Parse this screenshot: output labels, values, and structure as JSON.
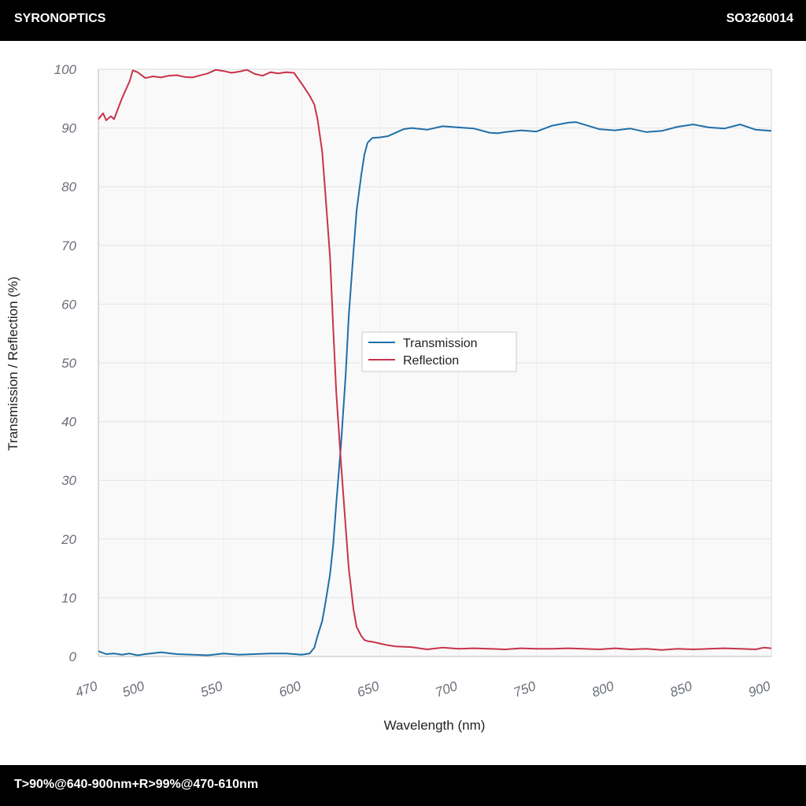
{
  "header": {
    "brand": "SYRONOPTICS",
    "code": "SO3260014"
  },
  "footer": {
    "spec": "T>90%@640-900nm+R>99%@470-610nm"
  },
  "chart_data": {
    "type": "line",
    "title": "",
    "xlabel": "Wavelength (nm)",
    "ylabel": "Transmission / Reflection (%)",
    "xlim": [
      470,
      900
    ],
    "ylim": [
      0,
      100
    ],
    "xticks": [
      470,
      500,
      550,
      600,
      650,
      700,
      750,
      800,
      850,
      900
    ],
    "yticks": [
      0,
      10,
      20,
      30,
      40,
      50,
      60,
      70,
      80,
      90,
      100
    ],
    "grid": true,
    "legend_position": "center",
    "colors": {
      "Transmission": "#1f6fa8",
      "Reflection": "#c8334a"
    },
    "series": [
      {
        "name": "Transmission",
        "x": [
          470,
          475,
          480,
          485,
          490,
          495,
          500,
          510,
          520,
          530,
          540,
          550,
          560,
          570,
          580,
          590,
          600,
          605,
          608,
          610,
          613,
          615,
          618,
          620,
          622,
          625,
          628,
          630,
          633,
          635,
          638,
          640,
          642,
          645,
          650,
          655,
          660,
          665,
          670,
          680,
          690,
          700,
          710,
          720,
          725,
          730,
          740,
          750,
          760,
          770,
          775,
          780,
          790,
          800,
          810,
          820,
          830,
          840,
          850,
          860,
          870,
          880,
          890,
          900
        ],
        "y": [
          0.9,
          0.4,
          0.5,
          0.3,
          0.5,
          0.2,
          0.4,
          0.7,
          0.4,
          0.3,
          0.2,
          0.5,
          0.3,
          0.4,
          0.5,
          0.5,
          0.3,
          0.5,
          1.5,
          3.5,
          6,
          9,
          14,
          19,
          26,
          36,
          48,
          58,
          69,
          76,
          82,
          85.5,
          87.5,
          88.3,
          88.4,
          88.6,
          89.2,
          89.8,
          90,
          89.7,
          90.3,
          90.1,
          89.9,
          89.2,
          89.1,
          89.3,
          89.6,
          89.4,
          90.4,
          90.9,
          91,
          90.6,
          89.8,
          89.6,
          89.9,
          89.3,
          89.5,
          90.2,
          90.6,
          90.1,
          89.9,
          90.6,
          89.7,
          89.5
        ]
      },
      {
        "name": "Reflection",
        "x": [
          470,
          473,
          475,
          478,
          480,
          485,
          490,
          492,
          495,
          500,
          505,
          510,
          515,
          520,
          525,
          530,
          540,
          545,
          550,
          555,
          560,
          565,
          570,
          575,
          580,
          585,
          590,
          595,
          600,
          605,
          608,
          610,
          613,
          615,
          618,
          620,
          622,
          625,
          628,
          630,
          633,
          635,
          638,
          640,
          642,
          645,
          650,
          655,
          660,
          670,
          680,
          690,
          700,
          710,
          720,
          730,
          740,
          750,
          760,
          770,
          780,
          790,
          800,
          810,
          820,
          830,
          840,
          850,
          860,
          870,
          880,
          890,
          895,
          900
        ],
        "y": [
          91.5,
          92.5,
          91.3,
          92,
          91.5,
          95,
          98,
          99.8,
          99.5,
          98.5,
          98.8,
          98.6,
          98.9,
          99,
          98.7,
          98.6,
          99.3,
          99.9,
          99.7,
          99.4,
          99.6,
          99.9,
          99.2,
          98.9,
          99.5,
          99.3,
          99.5,
          99.4,
          97.5,
          95.5,
          94,
          91.5,
          86,
          79,
          68,
          56,
          45,
          33,
          22,
          15,
          8,
          5,
          3.5,
          2.8,
          2.6,
          2.5,
          2.2,
          1.9,
          1.7,
          1.6,
          1.2,
          1.5,
          1.3,
          1.4,
          1.3,
          1.2,
          1.4,
          1.3,
          1.3,
          1.4,
          1.3,
          1.2,
          1.4,
          1.2,
          1.3,
          1.1,
          1.3,
          1.2,
          1.3,
          1.4,
          1.3,
          1.2,
          1.5,
          1.4
        ]
      }
    ]
  }
}
